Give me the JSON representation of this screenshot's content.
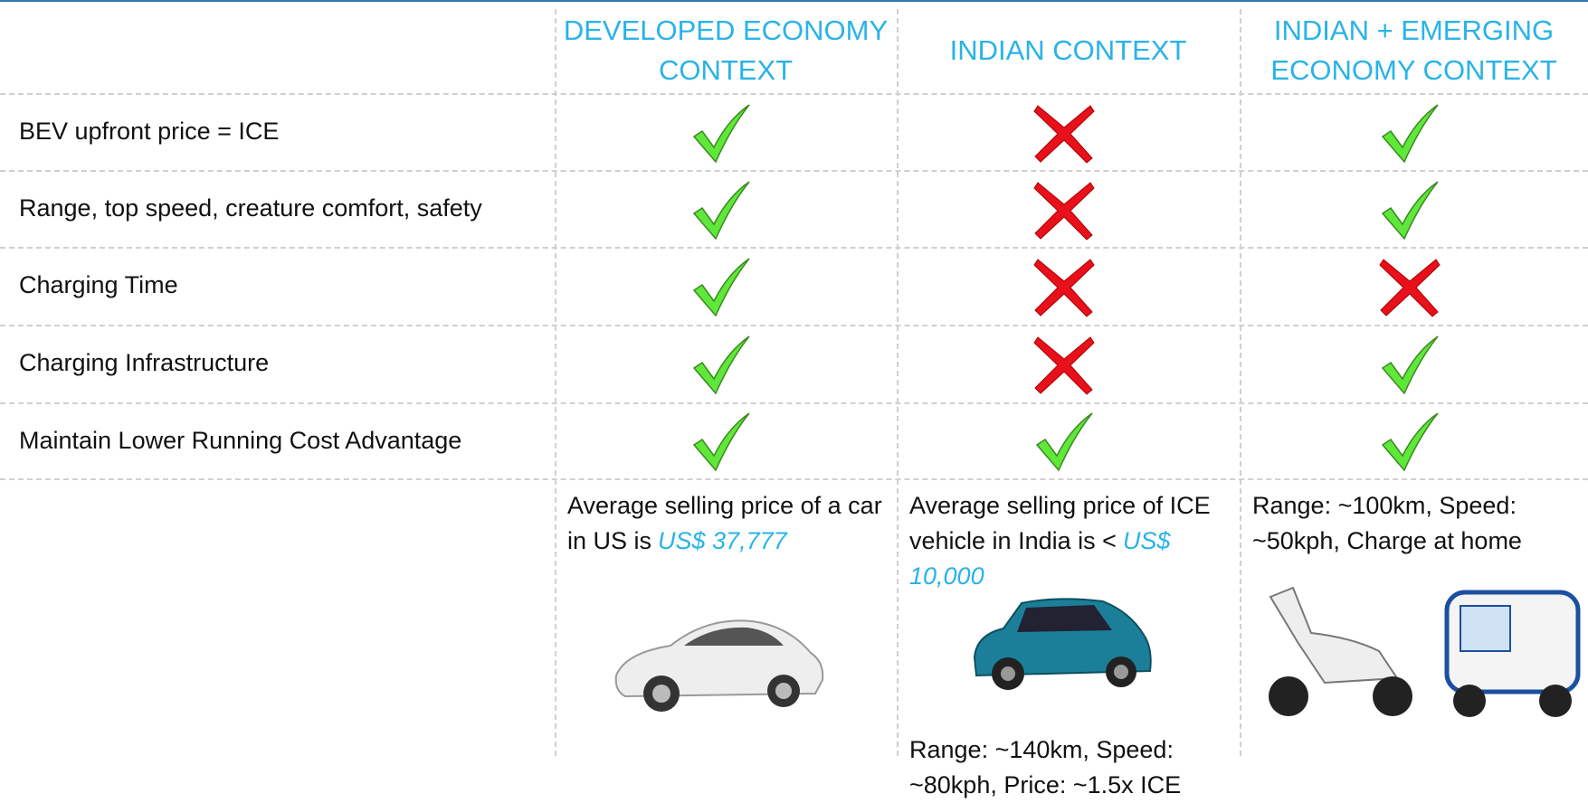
{
  "columns": [
    {
      "title": [
        "DEVELOPED ECONOMY",
        "CONTEXT"
      ],
      "note": {
        "text": "Average selling price of a car in US is",
        "price": "US$ 37,777"
      }
    },
    {
      "title": [
        "INDIAN CONTEXT"
      ],
      "note": {
        "text": "Average selling price of ICE vehicle in India is <",
        "price": "US$ 10,000"
      },
      "specs": "Range: ~140km, Speed: ~80kph, Price: ~1.5x ICE"
    },
    {
      "title": [
        "INDIAN + EMERGING",
        "ECONOMY CONTEXT"
      ],
      "specs": "Range: ~100km, Speed: ~50kph, Charge at home"
    }
  ],
  "rows": [
    {
      "label": "BEV upfront price = ICE",
      "marks": [
        true,
        false,
        true
      ]
    },
    {
      "label": "Range, top speed, creature comfort, safety",
      "marks": [
        true,
        false,
        true
      ]
    },
    {
      "label": "Charging Time",
      "marks": [
        true,
        false,
        false
      ]
    },
    {
      "label": "Charging Infrastructure",
      "marks": [
        true,
        false,
        true
      ]
    },
    {
      "label": "Maintain Lower Running Cost Advantage",
      "marks": [
        true,
        true,
        true
      ]
    }
  ]
}
